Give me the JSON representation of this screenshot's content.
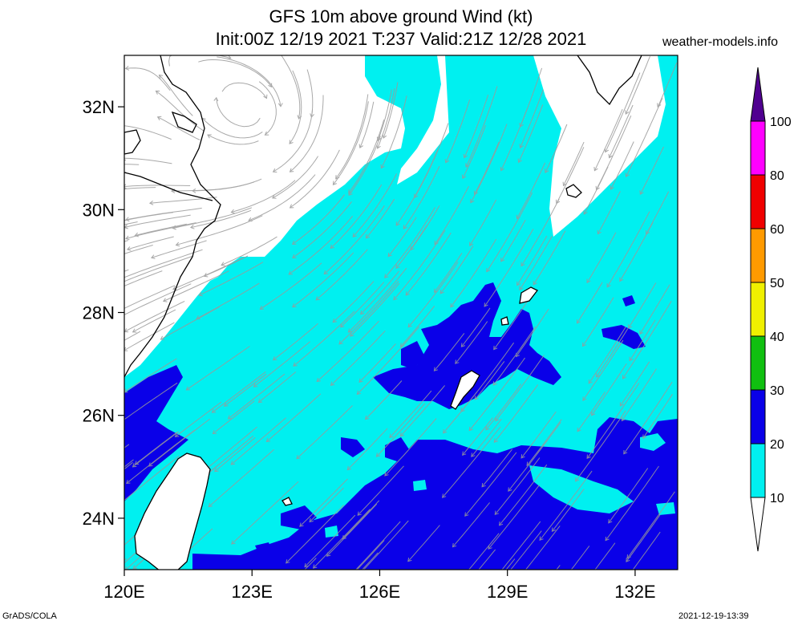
{
  "title_line1": "GFS 10m above ground Wind (kt)",
  "title_line2": "Init:00Z 12/19 2021 T:237 Valid:21Z 12/28 2021",
  "credit": "weather-models.info",
  "footer_left": "GrADS/COLA",
  "footer_right": "2021-12-19-13:39",
  "colors": {
    "land": "#ffffff",
    "band_10_20": "#00f0f0",
    "band_20_30": "#0a00e8",
    "band_30_40": "#10c010",
    "band_40_50": "#f0f000",
    "band_50_60": "#ff9a00",
    "band_60_80": "#f00000",
    "band_80_100": "#ff00ff",
    "band_100_plus": "#500090",
    "streamline": "#9a9a9a",
    "coastline": "#000000"
  },
  "map": {
    "lon_range": [
      120,
      133
    ],
    "lat_range": [
      23,
      33
    ],
    "lon_ticks": [
      120,
      123,
      126,
      129,
      132
    ],
    "lat_ticks": [
      24,
      26,
      28,
      30,
      32
    ],
    "lon_labels": [
      "120E",
      "123E",
      "126E",
      "129E",
      "132E"
    ],
    "lat_labels": [
      "24N",
      "26N",
      "28N",
      "30N",
      "32N"
    ],
    "regions_labeled": [],
    "features": [
      "Taiwan",
      "East China coast",
      "Ryukyu Islands",
      "Kyushu"
    ]
  },
  "colorbar": {
    "levels": [
      10,
      20,
      30,
      40,
      50,
      60,
      80,
      100
    ],
    "labels": [
      "10",
      "20",
      "30",
      "40",
      "50",
      "60",
      "80",
      "100"
    ],
    "band_colors": [
      "#00f0f0",
      "#0a00e8",
      "#10c010",
      "#f0f000",
      "#ff9a00",
      "#f00000",
      "#ff00ff"
    ],
    "bottom_arrow_color": "#ffffff",
    "top_arrow_color": "#500090"
  }
}
